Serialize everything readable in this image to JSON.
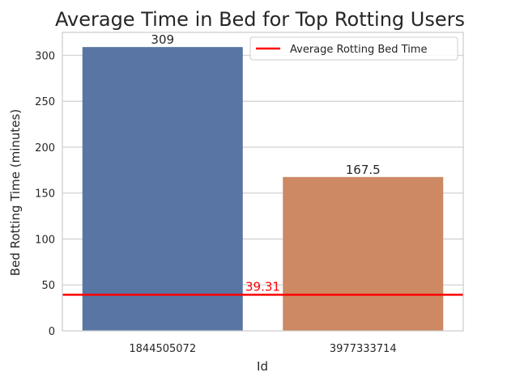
{
  "chart_data": {
    "type": "bar",
    "title": "Average Time in Bed for Top Rotting Users",
    "xlabel": "Id",
    "ylabel": "Bed Rotting Time (minutes)",
    "categories": [
      "1844505072",
      "3977333714"
    ],
    "values": [
      309,
      167.5
    ],
    "value_labels": [
      "309",
      "167.5"
    ],
    "bar_colors": [
      "#5875a4",
      "#cc8963"
    ],
    "ylim": [
      0,
      325
    ],
    "yticks": [
      0,
      50,
      100,
      150,
      200,
      250,
      300
    ],
    "ytick_labels": [
      "0",
      "50",
      "100",
      "150",
      "200",
      "250",
      "300"
    ],
    "grid": "horizontal",
    "reference_line": {
      "value": 39.31,
      "label": "39.31",
      "legend": "Average Rotting Bed Time",
      "color": "#ff0000"
    },
    "legend_position": "top-right"
  }
}
